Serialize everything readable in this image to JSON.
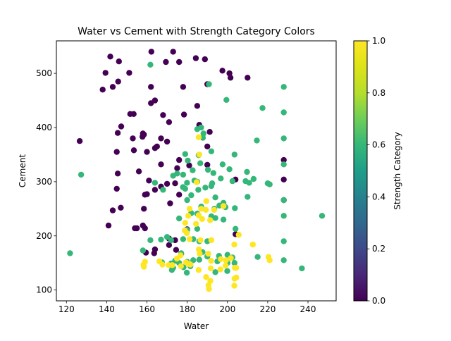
{
  "chart_data": {
    "type": "scatter",
    "title": "Water vs Cement with Strength Category Colors",
    "xlabel": "Water",
    "ylabel": "Cement",
    "xlim": [
      115,
      254
    ],
    "ylim": [
      80,
      560
    ],
    "x_ticks": [
      120,
      140,
      160,
      180,
      200,
      220,
      240
    ],
    "y_ticks": [
      100,
      200,
      300,
      400,
      500
    ],
    "colorbar": {
      "label": "Strength Category",
      "range": [
        0.0,
        1.0
      ],
      "ticks": [
        "0.0",
        "0.2",
        "0.4",
        "0.6",
        "0.8",
        "1.0"
      ],
      "colormap": "viridis"
    },
    "grid": false,
    "points": [
      [
        141.8,
        531,
        0
      ],
      [
        146.1,
        522,
        0
      ],
      [
        139.4,
        501,
        0
      ],
      [
        151.2,
        501,
        0
      ],
      [
        162.2,
        540,
        0
      ],
      [
        173,
        540,
        0
      ],
      [
        184.3,
        528,
        0
      ],
      [
        188.8,
        526,
        0
      ],
      [
        169.4,
        521,
        0
      ],
      [
        176,
        521,
        0
      ],
      [
        197.5,
        505,
        0
      ],
      [
        201.5,
        492,
        0
      ],
      [
        210,
        492,
        0
      ],
      [
        201,
        500,
        0
      ],
      [
        145.7,
        485,
        0
      ],
      [
        138,
        470,
        0
      ],
      [
        143,
        475,
        0
      ],
      [
        162,
        475,
        0
      ],
      [
        178,
        475,
        0
      ],
      [
        190,
        480,
        0
      ],
      [
        162,
        445,
        0
      ],
      [
        164,
        450,
        0
      ],
      [
        185,
        440,
        0
      ],
      [
        151.7,
        425,
        0
      ],
      [
        153.4,
        425,
        0
      ],
      [
        168,
        423,
        0
      ],
      [
        178.4,
        424,
        0
      ],
      [
        171,
        410,
        0
      ],
      [
        186,
        405,
        0
      ],
      [
        147.2,
        402,
        0
      ],
      [
        145.5,
        390,
        0
      ],
      [
        158,
        389,
        0
      ],
      [
        158.5,
        387,
        0
      ],
      [
        157.8,
        383,
        0
      ],
      [
        191.2,
        392,
        0
      ],
      [
        126.6,
        375,
        0
      ],
      [
        153,
        380,
        0
      ],
      [
        167,
        380,
        0
      ],
      [
        170,
        374,
        0
      ],
      [
        164,
        362,
        0
      ],
      [
        165,
        365,
        0
      ],
      [
        190,
        365,
        0
      ],
      [
        145,
        355,
        0
      ],
      [
        153.5,
        358,
        0
      ],
      [
        160,
        355,
        0
      ],
      [
        176,
        340,
        0
      ],
      [
        228,
        340,
        0
      ],
      [
        167,
        332,
        0
      ],
      [
        175,
        325,
        0
      ],
      [
        181,
        330,
        0
      ],
      [
        190,
        331,
        0
      ],
      [
        145.5,
        315,
        0
      ],
      [
        156,
        319,
        0
      ],
      [
        161,
        302,
        0
      ],
      [
        170,
        296,
        0
      ],
      [
        174,
        297,
        0
      ],
      [
        204,
        304,
        0
      ],
      [
        228,
        304,
        0
      ],
      [
        167,
        291,
        0
      ],
      [
        145,
        287,
        0
      ],
      [
        159,
        276,
        0
      ],
      [
        160,
        277,
        0
      ],
      [
        164,
        285,
        0
      ],
      [
        176,
        276,
        0
      ],
      [
        228,
        266,
        0
      ],
      [
        147,
        252,
        0
      ],
      [
        143,
        247,
        0
      ],
      [
        158.5,
        250,
        0
      ],
      [
        171.5,
        260,
        0
      ],
      [
        154,
        214,
        0
      ],
      [
        155,
        214,
        0
      ],
      [
        158,
        219,
        0
      ],
      [
        159,
        214,
        0
      ],
      [
        140.9,
        219,
        0
      ],
      [
        171,
        195,
        0
      ],
      [
        174,
        192,
        0
      ],
      [
        180,
        212,
        0
      ],
      [
        204,
        203,
        0
      ],
      [
        171,
        183,
        0
      ],
      [
        174.5,
        174,
        0
      ],
      [
        177,
        167,
        0
      ],
      [
        163.6,
        168,
        0
      ],
      [
        159.5,
        169,
        0
      ],
      [
        164,
        175,
        0
      ],
      [
        161.7,
        516,
        0.6
      ],
      [
        190.8,
        480,
        0.6
      ],
      [
        228,
        475,
        0.6
      ],
      [
        199.5,
        451,
        0.6
      ],
      [
        228,
        428,
        0.6
      ],
      [
        217.4,
        436,
        0.6
      ],
      [
        185,
        397,
        0.6
      ],
      [
        186.9,
        400,
        0.6
      ],
      [
        188.1,
        389,
        0.6
      ],
      [
        187.8,
        381,
        0.6
      ],
      [
        228,
        380,
        0.6
      ],
      [
        214.6,
        376,
        0.6
      ],
      [
        179,
        351,
        0.6
      ],
      [
        185.7,
        349,
        0.6
      ],
      [
        192,
        356,
        0.6
      ],
      [
        203.5,
        350,
        0.6
      ],
      [
        180.3,
        339,
        0.6
      ],
      [
        186.5,
        334,
        0.6
      ],
      [
        182.7,
        321,
        0.6
      ],
      [
        190.3,
        322,
        0.6
      ],
      [
        197.6,
        332,
        0.6
      ],
      [
        201,
        323,
        0.6
      ],
      [
        193,
        316,
        0.6
      ],
      [
        173,
        311,
        0.6
      ],
      [
        175,
        315,
        0.6
      ],
      [
        178,
        313,
        0.6
      ],
      [
        228,
        332,
        0.6
      ],
      [
        209.7,
        318,
        0.6
      ],
      [
        127.3,
        313,
        0.6
      ],
      [
        164,
        298,
        0.6
      ],
      [
        179.9,
        298,
        0.6
      ],
      [
        183.6,
        302,
        0.6
      ],
      [
        185,
        300,
        0.6
      ],
      [
        192.4,
        297,
        0.6
      ],
      [
        196.7,
        306,
        0.6
      ],
      [
        202.5,
        301,
        0.6
      ],
      [
        209,
        301,
        0.6
      ],
      [
        210.8,
        298,
        0.6
      ],
      [
        213,
        305,
        0.6
      ],
      [
        220,
        297,
        0.6
      ],
      [
        221,
        295,
        0.6
      ],
      [
        185.5,
        285,
        0.6
      ],
      [
        189,
        289,
        0.6
      ],
      [
        192,
        292,
        0.6
      ],
      [
        182,
        275,
        0.6
      ],
      [
        168,
        285,
        0.6
      ],
      [
        179,
        287,
        0.6
      ],
      [
        177.9,
        290,
        0.6
      ],
      [
        180,
        266,
        0.6
      ],
      [
        198,
        261,
        0.6
      ],
      [
        194,
        271,
        0.6
      ],
      [
        210,
        272,
        0.6
      ],
      [
        187,
        254,
        0.6
      ],
      [
        193.5,
        250,
        0.6
      ],
      [
        196,
        256,
        0.6
      ],
      [
        199,
        253,
        0.6
      ],
      [
        203.7,
        251,
        0.6
      ],
      [
        228,
        266,
        0.6
      ],
      [
        185,
        241,
        0.6
      ],
      [
        182,
        242,
        0.6
      ],
      [
        192,
        236,
        0.6
      ],
      [
        194,
        233,
        0.6
      ],
      [
        198,
        230,
        0.6
      ],
      [
        176,
        232,
        0.6
      ],
      [
        228,
        237,
        0.6
      ],
      [
        247,
        237,
        0.6
      ],
      [
        185,
        213,
        0.6
      ],
      [
        204,
        213,
        0.6
      ],
      [
        180,
        211,
        0.6
      ],
      [
        161.7,
        192,
        0.6
      ],
      [
        167,
        193,
        0.6
      ],
      [
        170,
        198,
        0.6
      ],
      [
        172,
        192,
        0.6
      ],
      [
        178,
        194,
        0.6
      ],
      [
        183,
        194,
        0.6
      ],
      [
        186,
        190,
        0.6
      ],
      [
        190,
        190,
        0.6
      ],
      [
        228,
        190,
        0.6
      ],
      [
        158,
        173,
        0.6
      ],
      [
        177,
        168,
        0.6
      ],
      [
        187.6,
        170,
        0.6
      ],
      [
        190,
        162,
        0.6
      ],
      [
        195.8,
        163,
        0.6
      ],
      [
        200,
        165,
        0.6
      ],
      [
        202.5,
        160,
        0.6
      ],
      [
        215,
        161,
        0.6
      ],
      [
        228,
        155,
        0.6
      ],
      [
        167.5,
        151,
        0.6
      ],
      [
        172,
        149,
        0.6
      ],
      [
        174,
        154,
        0.6
      ],
      [
        176,
        150,
        0.6
      ],
      [
        180,
        152,
        0.6
      ],
      [
        183,
        155,
        0.6
      ],
      [
        186,
        156,
        0.6
      ],
      [
        195,
        153,
        0.6
      ],
      [
        200,
        150,
        0.6
      ],
      [
        203.5,
        150,
        0.6
      ],
      [
        173,
        141,
        0.6
      ],
      [
        178.2,
        142,
        0.6
      ],
      [
        181.6,
        144,
        0.6
      ],
      [
        172.4,
        137,
        0.6
      ],
      [
        179.8,
        132,
        0.6
      ],
      [
        194,
        133,
        0.6
      ],
      [
        199.9,
        135,
        0.6
      ],
      [
        237,
        140,
        0.6
      ],
      [
        121.8,
        168,
        0.6
      ],
      [
        185.7,
        382,
        1
      ],
      [
        186,
        350,
        1
      ],
      [
        184.7,
        299,
        1
      ],
      [
        189.5,
        264,
        1
      ],
      [
        198,
        255,
        1
      ],
      [
        187,
        250,
        1
      ],
      [
        189.3,
        248,
        1
      ],
      [
        181.2,
        250,
        1
      ],
      [
        180.5,
        237,
        1
      ],
      [
        185.7,
        238,
        1
      ],
      [
        187.4,
        231,
        1
      ],
      [
        191.4,
        229,
        1
      ],
      [
        193.4,
        248,
        1
      ],
      [
        184.4,
        222,
        1
      ],
      [
        179,
        224,
        1
      ],
      [
        178.8,
        210,
        1
      ],
      [
        179.8,
        205,
        1
      ],
      [
        205.6,
        202,
        1
      ],
      [
        212.6,
        184,
        1
      ],
      [
        203.4,
        184,
        1
      ],
      [
        192,
        192,
        1
      ],
      [
        186.6,
        192,
        1
      ],
      [
        181.2,
        194,
        1
      ],
      [
        185.8,
        175,
        1
      ],
      [
        186.2,
        167,
        1
      ],
      [
        190.5,
        167,
        1
      ],
      [
        196.7,
        157,
        1
      ],
      [
        201.7,
        159,
        1
      ],
      [
        199.3,
        155,
        1
      ],
      [
        221,
        155,
        1
      ],
      [
        220.4,
        161,
        1
      ],
      [
        191.9,
        154,
        1
      ],
      [
        176.7,
        164,
        1
      ],
      [
        174.9,
        158,
        1
      ],
      [
        166.2,
        153,
        1
      ],
      [
        159,
        152,
        1
      ],
      [
        179.4,
        151,
        1
      ],
      [
        181.6,
        147,
        1
      ],
      [
        172.6,
        146,
        1
      ],
      [
        158.3,
        147,
        1
      ],
      [
        158.5,
        143,
        1
      ],
      [
        167.7,
        147,
        1
      ],
      [
        170.8,
        146,
        1
      ],
      [
        176.9,
        144,
        1
      ],
      [
        180.9,
        148,
        1
      ],
      [
        185.7,
        137,
        1
      ],
      [
        191.7,
        140,
        1
      ],
      [
        196.5,
        138,
        1
      ],
      [
        199.1,
        145,
        1
      ],
      [
        204.3,
        141,
        1
      ],
      [
        203.7,
        141,
        1
      ],
      [
        190.8,
        102,
        1
      ],
      [
        190.6,
        109,
        1
      ],
      [
        203.4,
        108,
        1
      ],
      [
        203.5,
        121,
        1
      ],
      [
        191.5,
        117,
        1
      ],
      [
        189.4,
        124,
        1
      ],
      [
        204.4,
        123,
        1
      ]
    ]
  }
}
